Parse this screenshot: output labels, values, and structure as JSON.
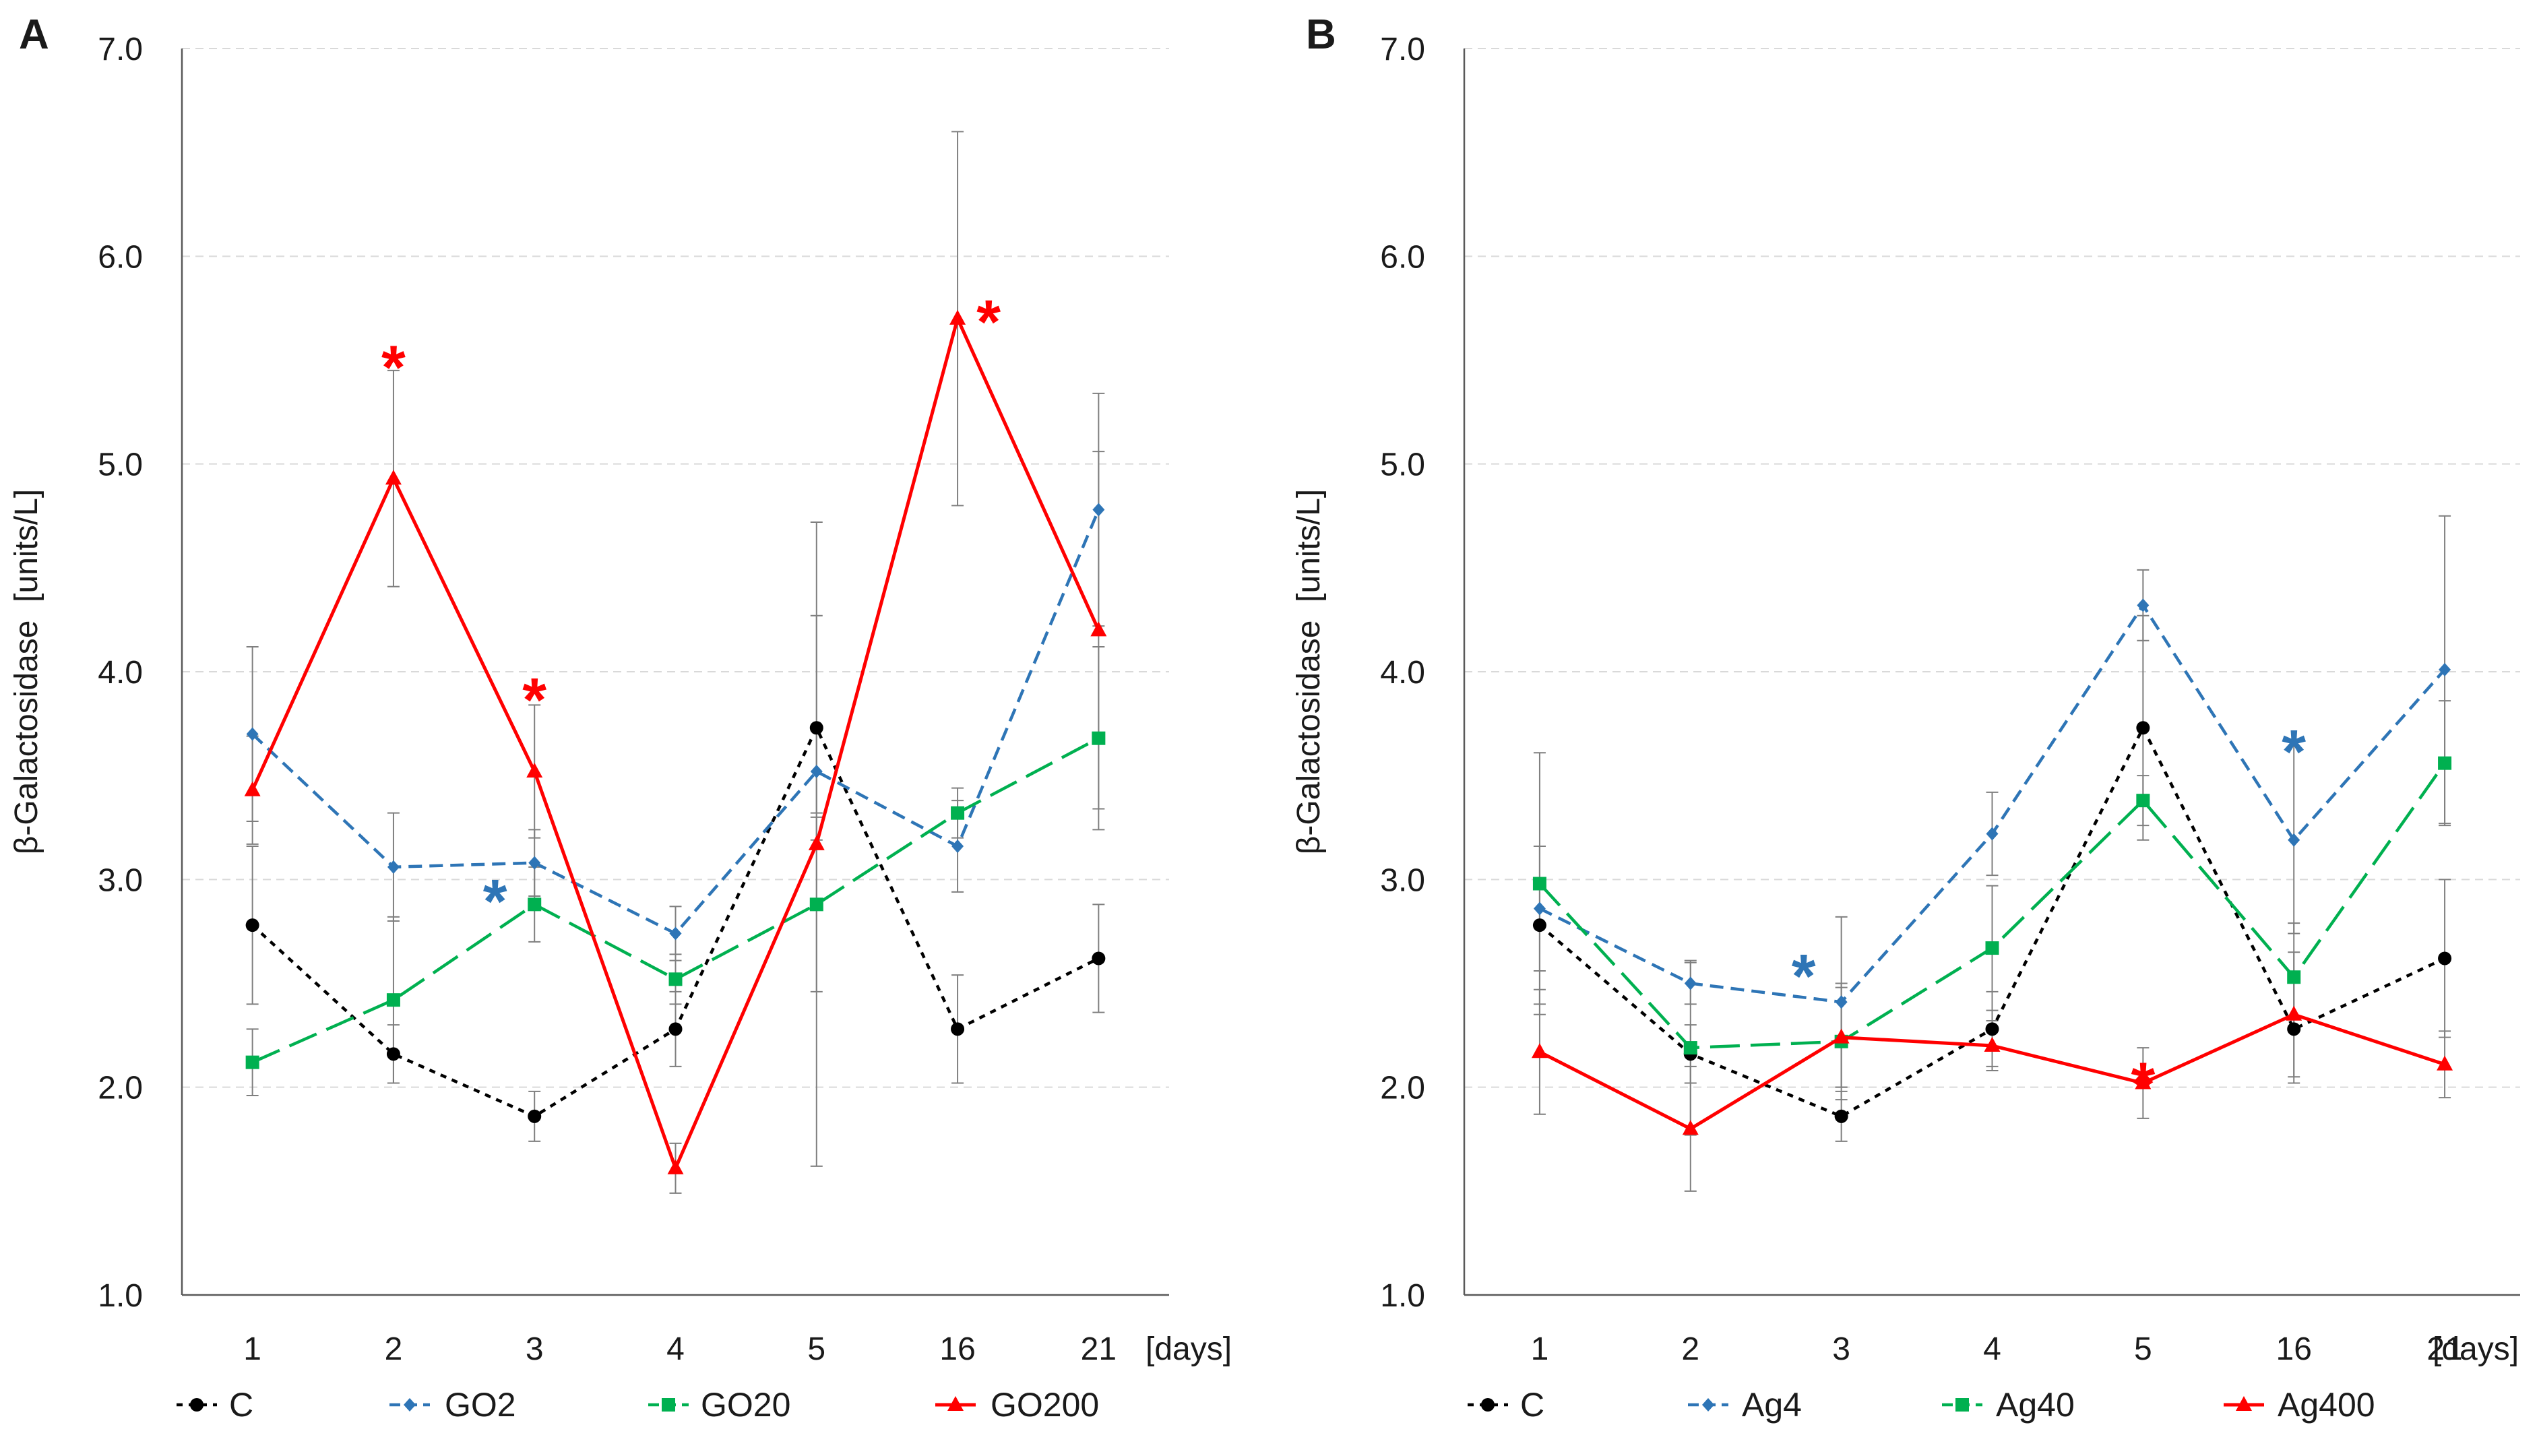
{
  "chart_data": [
    {
      "type": "line",
      "panel_label": "A",
      "ylabel": "β-Galactosidase  [units/L]",
      "xlabel": "[days]",
      "categories": [
        "1",
        "2",
        "3",
        "4",
        "5",
        "16",
        "21"
      ],
      "ylim": [
        1.0,
        7.0
      ],
      "yticks": [
        "1.0",
        "2.0",
        "3.0",
        "4.0",
        "5.0",
        "6.0",
        "7.0"
      ],
      "grid": true,
      "legend_position": "bottom",
      "series": [
        {
          "name": "C",
          "color": "#000000",
          "dash": "dotted",
          "marker": "circle",
          "values": [
            2.78,
            2.16,
            1.86,
            2.28,
            3.73,
            2.28,
            2.62
          ],
          "errors": [
            0.38,
            0.14,
            0.12,
            0.18,
            0.54,
            0.26,
            0.26
          ]
        },
        {
          "name": "GO2",
          "color": "#2e75b6",
          "dash": "dashed",
          "marker": "diamond",
          "values": [
            3.7,
            3.06,
            3.08,
            2.74,
            3.52,
            3.16,
            4.78
          ],
          "errors": [
            0.42,
            0.26,
            0.16,
            0.13,
            0.2,
            0.22,
            0.56
          ]
        },
        {
          "name": "GO20",
          "color": "#00b050",
          "dash": "longdash",
          "marker": "square",
          "values": [
            2.12,
            2.42,
            2.88,
            2.52,
            2.88,
            3.32,
            3.68
          ],
          "errors": [
            0.16,
            0.4,
            0.18,
            0.12,
            0.42,
            0.12,
            0.44
          ]
        },
        {
          "name": "GO200",
          "color": "#ff0000",
          "dash": "solid",
          "marker": "triangle",
          "values": [
            3.43,
            4.93,
            3.52,
            1.61,
            3.17,
            5.7,
            4.2
          ],
          "errors": [
            0.26,
            0.52,
            0.32,
            0.12,
            1.55,
            0.9,
            0.86
          ]
        }
      ],
      "annotations": [
        {
          "text": "*",
          "category": "2",
          "y": 5.55,
          "color": "#ff0000"
        },
        {
          "text": "*",
          "category": "3",
          "y": 3.95,
          "color": "#ff0000"
        },
        {
          "text": "*",
          "category": "3",
          "y": 2.98,
          "color": "#2e75b6",
          "offset": -0.28
        },
        {
          "text": "*",
          "category": "16",
          "y": 5.77,
          "color": "#ff0000",
          "offset": 0.22
        }
      ]
    },
    {
      "type": "line",
      "panel_label": "B",
      "ylabel": "β-Galactosidase  [units/L]",
      "xlabel": "[days]",
      "categories": [
        "1",
        "2",
        "3",
        "4",
        "5",
        "16",
        "21"
      ],
      "ylim": [
        1.0,
        7.0
      ],
      "yticks": [
        "1.0",
        "2.0",
        "3.0",
        "4.0",
        "5.0",
        "6.0",
        "7.0"
      ],
      "grid": true,
      "legend_position": "bottom",
      "series": [
        {
          "name": "C",
          "color": "#000000",
          "dash": "dotted",
          "marker": "circle",
          "values": [
            2.78,
            2.16,
            1.86,
            2.28,
            3.73,
            2.28,
            2.62
          ],
          "errors": [
            0.38,
            0.14,
            0.12,
            0.18,
            0.54,
            0.26,
            0.38
          ]
        },
        {
          "name": "Ag4",
          "color": "#2e75b6",
          "dash": "dashed",
          "marker": "diamond",
          "values": [
            2.86,
            2.5,
            2.41,
            3.22,
            4.32,
            3.19,
            4.01
          ],
          "errors": [
            0.3,
            0.1,
            0.41,
            0.2,
            0.17,
            0.45,
            0.74
          ]
        },
        {
          "name": "Ag40",
          "color": "#00b050",
          "dash": "longdash",
          "marker": "square",
          "values": [
            2.98,
            2.19,
            2.22,
            2.67,
            3.38,
            2.53,
            3.56
          ],
          "errors": [
            0.63,
            0.42,
            0.28,
            0.3,
            0.12,
            0.26,
            0.3
          ]
        },
        {
          "name": "Ag400",
          "color": "#ff0000",
          "dash": "solid",
          "marker": "triangle",
          "values": [
            2.17,
            1.8,
            2.24,
            2.2,
            2.02,
            2.35,
            2.11
          ],
          "errors": [
            0.3,
            0.3,
            0.24,
            0.12,
            0.17,
            0.3,
            0.16
          ]
        }
      ],
      "annotations": [
        {
          "text": "*",
          "category": "3",
          "y": 2.62,
          "color": "#2e75b6",
          "offset": -0.25
        },
        {
          "text": "*",
          "category": "5",
          "y": 2.1,
          "color": "#ff0000"
        },
        {
          "text": "*",
          "category": "16",
          "y": 3.7,
          "color": "#2e75b6"
        }
      ]
    }
  ]
}
